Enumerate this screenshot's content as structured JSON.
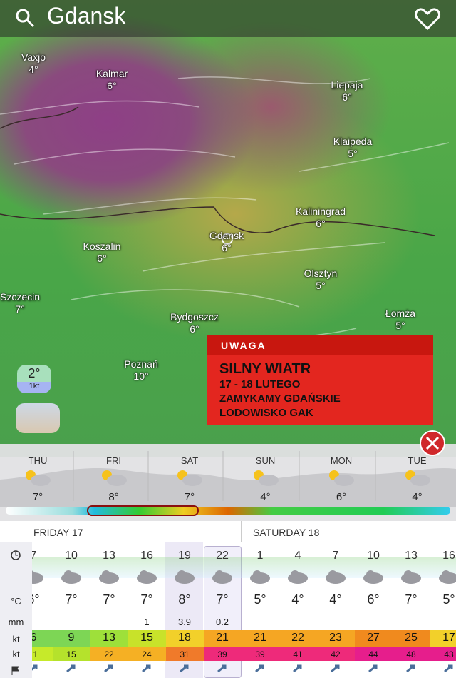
{
  "search": {
    "query": "Gdansk"
  },
  "map": {
    "places": [
      {
        "name": "Vaxjo",
        "temp": "4°"
      },
      {
        "name": "Kalmar",
        "temp": "6°"
      },
      {
        "name": "Liepaja",
        "temp": "6°"
      },
      {
        "name": "Klaipeda",
        "temp": "5°"
      },
      {
        "name": "Kaliningrad",
        "temp": "6°"
      },
      {
        "name": "Gdansk",
        "temp": "6°"
      },
      {
        "name": "Koszalin",
        "temp": "6°"
      },
      {
        "name": "Olsztyn",
        "temp": "5°"
      },
      {
        "name": "Szczecin",
        "temp": "7°"
      },
      {
        "name": "Bydgoszcz",
        "temp": "6°"
      },
      {
        "name": "Łomża",
        "temp": "5°"
      },
      {
        "name": "Poznań",
        "temp": "10°"
      }
    ]
  },
  "current": {
    "temp": "2°",
    "wind": "1kt"
  },
  "alert": {
    "heading": "UWAGA",
    "title": "SILNY WIATR",
    "lines": [
      "17 - 18 LUTEGO",
      "ZAMYKAMY GDAŃSKIE",
      "LODOWISKO GAK"
    ]
  },
  "days": [
    {
      "name": "THU",
      "temp": "7°"
    },
    {
      "name": "FRI",
      "temp": "8°"
    },
    {
      "name": "SAT",
      "temp": "7°"
    },
    {
      "name": "SUN",
      "temp": "4°"
    },
    {
      "name": "MON",
      "temp": "6°"
    },
    {
      "name": "TUE",
      "temp": "4°"
    }
  ],
  "forecast": {
    "dates": [
      "FRIDAY 17",
      "SATURDAY 18"
    ],
    "units": [
      "°C",
      "mm",
      "kt",
      "kt"
    ],
    "hours": [
      7,
      10,
      13,
      16,
      19,
      22,
      1,
      4,
      7,
      10,
      13,
      16
    ],
    "temps": [
      "6°",
      "7°",
      "7°",
      "7°",
      "8°",
      "7°",
      "5°",
      "4°",
      "4°",
      "6°",
      "7°",
      "5°"
    ],
    "precip": [
      null,
      null,
      null,
      1,
      3.9,
      0.2,
      null,
      null,
      null,
      null,
      null,
      null
    ],
    "wind": [
      6,
      9,
      13,
      15,
      18,
      21,
      21,
      22,
      23,
      27,
      25,
      17
    ],
    "gusts": [
      11,
      15,
      22,
      24,
      31,
      39,
      39,
      41,
      42,
      44,
      48,
      43
    ]
  }
}
